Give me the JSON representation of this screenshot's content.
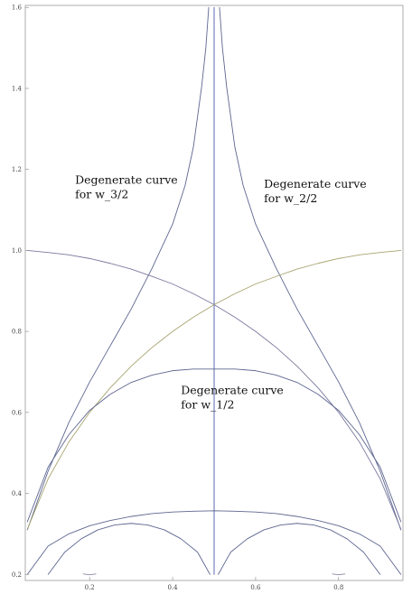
{
  "chart_data": {
    "type": "line",
    "title": "",
    "xlabel": "",
    "ylabel": "",
    "xlim": [
      0.045,
      0.955
    ],
    "ylim": [
      0.185,
      1.605
    ],
    "x_ticks": [
      {
        "value": 0.2,
        "label": "0.2"
      },
      {
        "value": 0.4,
        "label": "0.4"
      },
      {
        "value": 0.6,
        "label": "0.6"
      },
      {
        "value": 0.8,
        "label": "0.8"
      }
    ],
    "y_ticks": [
      {
        "value": 0.2,
        "label": "0.2"
      },
      {
        "value": 0.4,
        "label": "0.4"
      },
      {
        "value": 0.6,
        "label": "0.6"
      },
      {
        "value": 0.8,
        "label": "0.8"
      },
      {
        "value": 1.0,
        "label": "1.0"
      },
      {
        "value": 1.2,
        "label": "1.2"
      },
      {
        "value": 1.4,
        "label": "1.4"
      },
      {
        "value": 1.6,
        "label": "1.6"
      }
    ],
    "grid": false,
    "legend": "none",
    "annotations": [
      {
        "id": "w3",
        "lines": [
          "Degenerate curve",
          "for w_3/2"
        ],
        "x": 0.165,
        "y": 1.165
      },
      {
        "id": "w2",
        "lines": [
          "Degenerate curve",
          "for w_2/2"
        ],
        "x": 0.62,
        "y": 1.155
      },
      {
        "id": "w1",
        "lines": [
          "Degenerate curve",
          "for w_1/2"
        ],
        "x": 0.42,
        "y": 0.645
      }
    ],
    "series": [
      {
        "key": "vertical",
        "color": "#4b58a8",
        "points": [
          [
            0.5,
            0.2
          ],
          [
            0.5,
            1.6
          ]
        ]
      },
      {
        "key": "cusp-left",
        "color": "#5e6690",
        "points": [
          [
            0.05,
            0.31
          ],
          [
            0.1,
            0.455
          ],
          [
            0.15,
            0.575
          ],
          [
            0.2,
            0.675
          ],
          [
            0.25,
            0.765
          ],
          [
            0.3,
            0.855
          ],
          [
            0.35,
            0.955
          ],
          [
            0.4,
            1.065
          ],
          [
            0.43,
            1.16
          ],
          [
            0.45,
            1.255
          ],
          [
            0.47,
            1.405
          ],
          [
            0.48,
            1.5
          ],
          [
            0.487,
            1.6
          ]
        ]
      },
      {
        "key": "cusp-right",
        "color": "#5e6690",
        "points": [
          [
            0.513,
            1.6
          ],
          [
            0.52,
            1.5
          ],
          [
            0.53,
            1.405
          ],
          [
            0.55,
            1.255
          ],
          [
            0.57,
            1.16
          ],
          [
            0.6,
            1.065
          ],
          [
            0.65,
            0.955
          ],
          [
            0.7,
            0.855
          ],
          [
            0.75,
            0.765
          ],
          [
            0.8,
            0.675
          ],
          [
            0.85,
            0.575
          ],
          [
            0.9,
            0.455
          ],
          [
            0.95,
            0.31
          ]
        ]
      },
      {
        "key": "arc-left-unit",
        "color": "#7b7aa0",
        "points": [
          [
            0.05,
            1.0
          ],
          [
            0.1,
            0.995
          ],
          [
            0.15,
            0.989
          ],
          [
            0.2,
            0.98
          ],
          [
            0.25,
            0.968
          ],
          [
            0.3,
            0.954
          ],
          [
            0.35,
            0.936
          ],
          [
            0.4,
            0.917
          ],
          [
            0.45,
            0.893
          ],
          [
            0.5,
            0.866
          ],
          [
            0.55,
            0.835
          ],
          [
            0.6,
            0.8
          ],
          [
            0.65,
            0.76
          ],
          [
            0.7,
            0.714
          ],
          [
            0.75,
            0.661
          ],
          [
            0.8,
            0.6
          ],
          [
            0.85,
            0.527
          ],
          [
            0.9,
            0.436
          ],
          [
            0.95,
            0.312
          ]
        ]
      },
      {
        "key": "arc-right-unit",
        "color": "#a8a470",
        "points": [
          [
            0.05,
            0.312
          ],
          [
            0.1,
            0.436
          ],
          [
            0.15,
            0.527
          ],
          [
            0.2,
            0.6
          ],
          [
            0.25,
            0.661
          ],
          [
            0.3,
            0.714
          ],
          [
            0.35,
            0.76
          ],
          [
            0.4,
            0.8
          ],
          [
            0.45,
            0.835
          ],
          [
            0.5,
            0.866
          ],
          [
            0.55,
            0.893
          ],
          [
            0.6,
            0.917
          ],
          [
            0.65,
            0.936
          ],
          [
            0.7,
            0.954
          ],
          [
            0.75,
            0.968
          ],
          [
            0.8,
            0.98
          ],
          [
            0.85,
            0.989
          ],
          [
            0.9,
            0.995
          ],
          [
            0.95,
            1.0
          ]
        ]
      },
      {
        "key": "arc-middle",
        "color": "#5e6690",
        "points": [
          [
            0.05,
            0.33
          ],
          [
            0.1,
            0.465
          ],
          [
            0.15,
            0.545
          ],
          [
            0.2,
            0.605
          ],
          [
            0.25,
            0.645
          ],
          [
            0.3,
            0.674
          ],
          [
            0.35,
            0.692
          ],
          [
            0.4,
            0.703
          ],
          [
            0.45,
            0.707
          ],
          [
            0.5,
            0.707
          ],
          [
            0.55,
            0.707
          ],
          [
            0.6,
            0.703
          ],
          [
            0.65,
            0.692
          ],
          [
            0.7,
            0.674
          ],
          [
            0.75,
            0.645
          ],
          [
            0.8,
            0.605
          ],
          [
            0.85,
            0.545
          ],
          [
            0.9,
            0.465
          ],
          [
            0.95,
            0.33
          ]
        ]
      },
      {
        "key": "arc-low",
        "color": "#5e6690",
        "points": [
          [
            0.05,
            0.2
          ],
          [
            0.1,
            0.27
          ],
          [
            0.15,
            0.3
          ],
          [
            0.2,
            0.32
          ],
          [
            0.25,
            0.333
          ],
          [
            0.3,
            0.343
          ],
          [
            0.35,
            0.35
          ],
          [
            0.4,
            0.354
          ],
          [
            0.45,
            0.356
          ],
          [
            0.5,
            0.357
          ],
          [
            0.55,
            0.356
          ],
          [
            0.6,
            0.354
          ],
          [
            0.65,
            0.35
          ],
          [
            0.7,
            0.343
          ],
          [
            0.75,
            0.333
          ],
          [
            0.8,
            0.32
          ],
          [
            0.85,
            0.3
          ],
          [
            0.9,
            0.27
          ],
          [
            0.95,
            0.2
          ]
        ]
      },
      {
        "key": "dome-left",
        "color": "#5e6690",
        "points": [
          [
            0.1,
            0.2
          ],
          [
            0.14,
            0.255
          ],
          [
            0.18,
            0.288
          ],
          [
            0.22,
            0.31
          ],
          [
            0.26,
            0.322
          ],
          [
            0.3,
            0.326
          ],
          [
            0.34,
            0.322
          ],
          [
            0.38,
            0.31
          ],
          [
            0.42,
            0.288
          ],
          [
            0.46,
            0.255
          ],
          [
            0.49,
            0.2
          ]
        ]
      },
      {
        "key": "dome-right",
        "color": "#5e6690",
        "points": [
          [
            0.51,
            0.2
          ],
          [
            0.54,
            0.255
          ],
          [
            0.58,
            0.288
          ],
          [
            0.62,
            0.31
          ],
          [
            0.66,
            0.322
          ],
          [
            0.7,
            0.326
          ],
          [
            0.74,
            0.322
          ],
          [
            0.78,
            0.31
          ],
          [
            0.82,
            0.288
          ],
          [
            0.86,
            0.255
          ],
          [
            0.9,
            0.2
          ]
        ]
      },
      {
        "key": "speck-left",
        "color": "#8a8aa8",
        "points": [
          [
            0.185,
            0.201
          ],
          [
            0.2,
            0.199
          ],
          [
            0.215,
            0.201
          ]
        ]
      },
      {
        "key": "speck-right",
        "color": "#8a8aa8",
        "points": [
          [
            0.785,
            0.201
          ],
          [
            0.8,
            0.199
          ],
          [
            0.815,
            0.201
          ]
        ]
      }
    ]
  }
}
